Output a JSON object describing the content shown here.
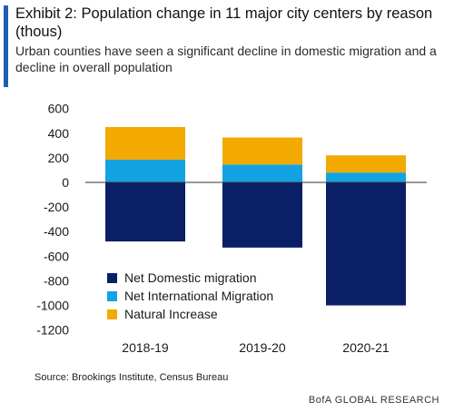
{
  "header": {
    "title": "Exhibit 2: Population change in 11 major city centers by reason (thous)",
    "subtitle": "Urban counties have seen a significant decline in domestic migration and a decline in overall population"
  },
  "footer": {
    "source": "Source: Brookings Institute, Census Bureau",
    "brand": "BofA GLOBAL RESEARCH"
  },
  "chart_data": {
    "type": "bar",
    "stacked": true,
    "categories": [
      "2018-19",
      "2019-20",
      "2020-21"
    ],
    "series": [
      {
        "name": "Net Domestic migration",
        "color": "#0b1f66",
        "values": [
          -480,
          -530,
          -1000
        ]
      },
      {
        "name": "Net International Migration",
        "color": "#13a3e3",
        "values": [
          185,
          145,
          80
        ]
      },
      {
        "name": "Natural Increase",
        "color": "#f2a900",
        "values": [
          265,
          220,
          140
        ]
      }
    ],
    "ylim": [
      -1200,
      600
    ],
    "yticks": [
      600,
      400,
      200,
      0,
      -200,
      -400,
      -600,
      -800,
      -1000,
      -1200
    ],
    "grid": false,
    "legend_position": "bottom-left inside"
  }
}
